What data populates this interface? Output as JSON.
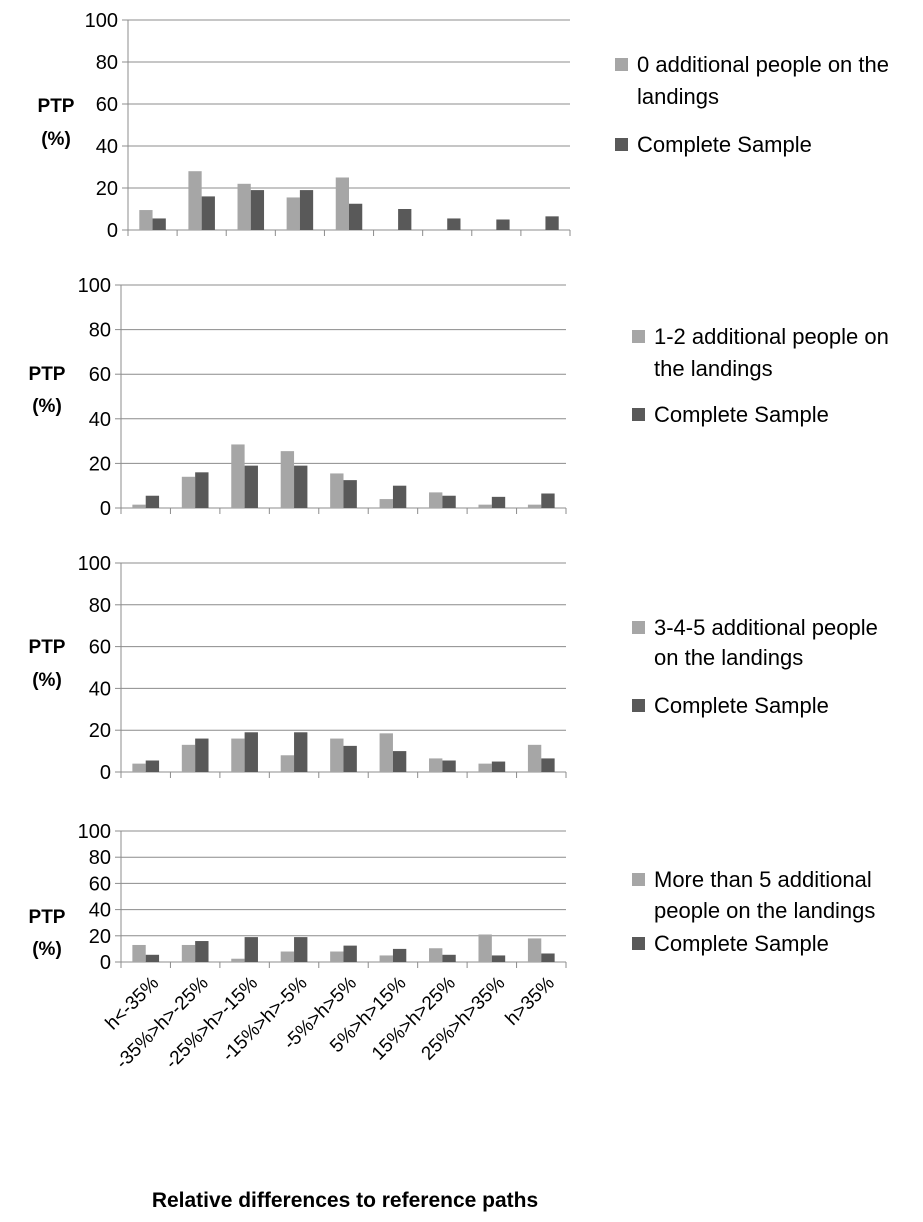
{
  "chart_data": [
    {
      "type": "bar",
      "categories": [
        "h<-35%",
        "-35%>h>-25%",
        "-25%>h>-15%",
        "-15%>h>-5%",
        "-5%>h>5%",
        "5%>h>15%",
        "15%>h>25%",
        "25%>h>35%",
        "h>35%"
      ],
      "ylabel": [
        "PTP",
        "(%)"
      ],
      "ylim": [
        0,
        100
      ],
      "yticks": [
        0,
        20,
        40,
        60,
        80,
        100
      ],
      "grid": true,
      "legend_position": "right",
      "series": [
        {
          "name": "0 additional people on the landings",
          "legend_lines": [
            "0 additional people on the",
            "landings"
          ],
          "color": "#a6a6a6",
          "values": [
            9.5,
            28,
            22,
            15.5,
            25,
            0,
            0,
            0,
            0
          ]
        },
        {
          "name": "Complete Sample",
          "legend_lines": [
            "Complete Sample"
          ],
          "color": "#595959",
          "values": [
            5.5,
            16,
            19,
            19,
            12.5,
            10,
            5.5,
            5,
            6.5
          ]
        }
      ]
    },
    {
      "type": "bar",
      "categories": [
        "h<-35%",
        "-35%>h>-25%",
        "-25%>h>-15%",
        "-15%>h>-5%",
        "-5%>h>5%",
        "5%>h>15%",
        "15%>h>25%",
        "25%>h>35%",
        "h>35%"
      ],
      "ylabel": [
        "PTP",
        "(%)"
      ],
      "ylim": [
        0,
        100
      ],
      "yticks": [
        0,
        20,
        40,
        60,
        80,
        100
      ],
      "grid": true,
      "legend_position": "right",
      "series": [
        {
          "name": "1-2 additional people on the landings",
          "legend_lines": [
            "1-2 additional people on",
            "the landings"
          ],
          "color": "#a6a6a6",
          "values": [
            1.5,
            14,
            28.5,
            25.5,
            15.5,
            4,
            7,
            1.5,
            1.5
          ]
        },
        {
          "name": "Complete Sample",
          "legend_lines": [
            "Complete Sample"
          ],
          "color": "#595959",
          "values": [
            5.5,
            16,
            19,
            19,
            12.5,
            10,
            5.5,
            5,
            6.5
          ]
        }
      ]
    },
    {
      "type": "bar",
      "categories": [
        "h<-35%",
        "-35%>h>-25%",
        "-25%>h>-15%",
        "-15%>h>-5%",
        "-5%>h>5%",
        "5%>h>15%",
        "15%>h>25%",
        "25%>h>35%",
        "h>35%"
      ],
      "ylabel": [
        "PTP",
        "(%)"
      ],
      "ylim": [
        0,
        100
      ],
      "yticks": [
        0,
        20,
        40,
        60,
        80,
        100
      ],
      "grid": true,
      "legend_position": "right",
      "series": [
        {
          "name": "3-4-5 additional people on the landings",
          "legend_lines": [
            "3-4-5 additional people",
            "on the landings"
          ],
          "color": "#a6a6a6",
          "values": [
            4,
            13,
            16,
            8,
            16,
            18.5,
            6.5,
            4,
            13
          ]
        },
        {
          "name": "Complete Sample",
          "legend_lines": [
            "Complete Sample"
          ],
          "color": "#595959",
          "values": [
            5.5,
            16,
            19,
            19,
            12.5,
            10,
            5.5,
            5,
            6.5
          ]
        }
      ]
    },
    {
      "type": "bar",
      "categories": [
        "h<-35%",
        "-35%>h>-25%",
        "-25%>h>-15%",
        "-15%>h>-5%",
        "-5%>h>5%",
        "5%>h>15%",
        "15%>h>25%",
        "25%>h>35%",
        "h>35%"
      ],
      "ylabel": [
        "PTP",
        "(%)"
      ],
      "ylim": [
        0,
        100
      ],
      "yticks": [
        0,
        20,
        40,
        60,
        80,
        100
      ],
      "grid": true,
      "legend_position": "right",
      "show_category_labels": true,
      "xlabel": "Relative differences to reference paths",
      "series": [
        {
          "name": "More than 5 additional people on the landings",
          "legend_lines": [
            "More than 5 additional",
            "people on the landings"
          ],
          "color": "#a6a6a6",
          "values": [
            13,
            13,
            2.5,
            8,
            8,
            5,
            10.5,
            21,
            18
          ]
        },
        {
          "name": "Complete Sample",
          "legend_lines": [
            "Complete Sample"
          ],
          "color": "#595959",
          "values": [
            5.5,
            16,
            19,
            19,
            12.5,
            10,
            5.5,
            5,
            6.5
          ]
        }
      ]
    }
  ]
}
